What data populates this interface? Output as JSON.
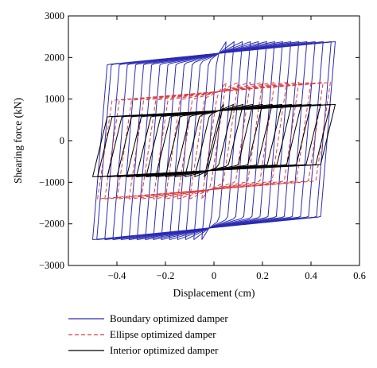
{
  "chart_data": {
    "type": "line",
    "title": "",
    "xlabel": "Displacement (cm)",
    "ylabel": "Shearing force (kN)",
    "xlim": [
      -0.6,
      0.6
    ],
    "ylim": [
      -3000,
      3000
    ],
    "xticks": [
      -0.4,
      -0.2,
      0,
      0.2,
      0.4,
      0.6
    ],
    "yticks": [
      -3000,
      -2000,
      -1000,
      0,
      1000,
      2000,
      3000
    ],
    "xtick_labels": [
      "−0.4",
      "−0.2",
      "0",
      "0.2",
      "0.4",
      "0.6"
    ],
    "ytick_labels": [
      "−3000",
      "−2000",
      "−1000",
      "0",
      "1000",
      "2000",
      "3000"
    ],
    "grid": false,
    "legend_position": "below",
    "series": [
      {
        "name": "Boundary optimized damper",
        "color": "#2a2ab4",
        "dash": "solid",
        "peak_displacements": [
          0.05,
          0.083,
          0.117,
          0.15,
          0.183,
          0.217,
          0.25,
          0.283,
          0.317,
          0.35,
          0.383,
          0.417,
          0.45,
          0.483,
          0.5
        ],
        "peak_force": 2380,
        "yield_displacement": 0.02,
        "plateau_force": 2100
      },
      {
        "name": "Ellipse optimized damper",
        "color": "#e03a3a",
        "dash": "dashed",
        "peak_displacements": [
          0.05,
          0.1,
          0.15,
          0.2,
          0.25,
          0.3,
          0.35,
          0.4,
          0.45,
          0.48
        ],
        "peak_force": 1400,
        "yield_displacement": 0.02,
        "plateau_force": 1180
      },
      {
        "name": "Interior optimized damper",
        "color": "#000000",
        "dash": "solid",
        "peak_displacements": [
          0.04,
          0.08,
          0.12,
          0.16,
          0.2,
          0.24,
          0.28,
          0.32,
          0.36,
          0.4,
          0.44,
          0.48,
          0.5
        ],
        "peak_force": 870,
        "yield_displacement": 0.02,
        "plateau_force": 720
      }
    ]
  }
}
